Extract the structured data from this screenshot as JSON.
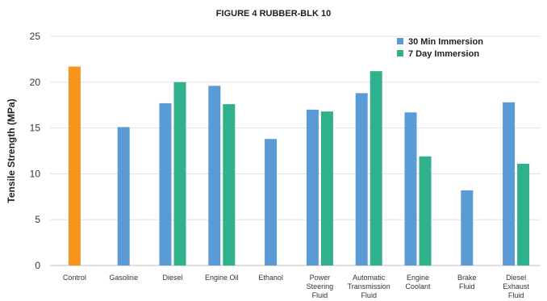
{
  "chart_data": {
    "type": "bar",
    "title": "FIGURE 4 RUBBER-BLK 10",
    "xlabel": "",
    "ylabel": "Tensile Strength (MPa)",
    "ylim": [
      0,
      25
    ],
    "yticks": [
      0,
      5,
      10,
      15,
      20,
      25
    ],
    "grid": true,
    "legend_position": "top-right",
    "categories": [
      "Control",
      "Gasoline",
      "Diesel",
      "Engine Oil",
      "Ethanol",
      "Power Steering Fluid",
      "Automatic Transmission Fluid",
      "Engine Coolant",
      "Brake Fluid",
      "Diesel Exhaust Fluid"
    ],
    "category_label_lines": [
      [
        "Control"
      ],
      [
        "Gasoline"
      ],
      [
        "Diesel"
      ],
      [
        "Engine Oil"
      ],
      [
        "Ethanol"
      ],
      [
        "Power",
        "Steering",
        "Fluid"
      ],
      [
        "Automatic",
        "Transmission",
        "Fluid"
      ],
      [
        "Engine",
        "Coolant"
      ],
      [
        "Brake",
        "Fluid"
      ],
      [
        "Diesel",
        "Exhaust",
        "Fluid"
      ]
    ],
    "control": {
      "value": 21.7,
      "color": "#f7941d"
    },
    "series": [
      {
        "name": "30 Min Immersion",
        "color": "#5b9bd5",
        "values": [
          null,
          15.1,
          17.7,
          19.6,
          13.8,
          17.0,
          18.8,
          16.7,
          8.2,
          17.8
        ]
      },
      {
        "name": "7 Day Immersion",
        "color": "#2eb18c",
        "values": [
          null,
          null,
          20.0,
          17.6,
          null,
          16.8,
          21.2,
          11.9,
          null,
          11.1
        ]
      }
    ]
  }
}
